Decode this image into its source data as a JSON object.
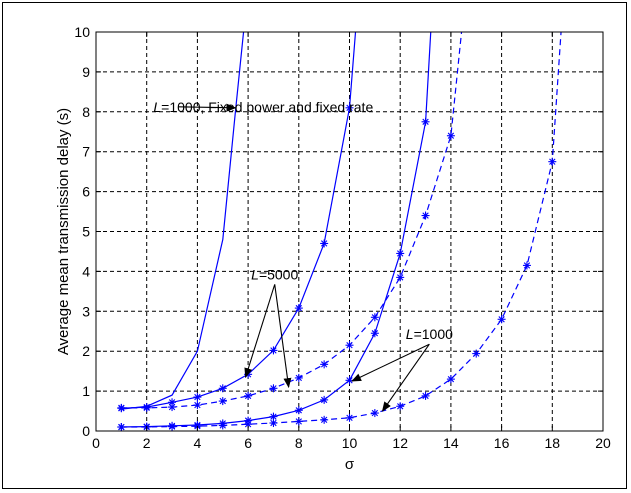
{
  "chart_data": {
    "type": "line",
    "title": "",
    "xlabel": "σ",
    "ylabel": "Average mean transmission delay (s)",
    "xlim": [
      0,
      20
    ],
    "ylim": [
      0,
      10
    ],
    "xticks": [
      0,
      2,
      4,
      6,
      8,
      10,
      12,
      14,
      16,
      18,
      20
    ],
    "yticks": [
      0,
      1,
      2,
      3,
      4,
      5,
      6,
      7,
      8,
      9,
      10
    ],
    "grid": true,
    "line_color": "#0000ff",
    "series": [
      {
        "style": "solid",
        "marker": "none",
        "points": [
          [
            1,
            0.55
          ],
          [
            2,
            0.62
          ],
          [
            3,
            0.9
          ],
          [
            4,
            2.0
          ],
          [
            5,
            4.8
          ],
          [
            5.5,
            8
          ],
          [
            5.9,
            10.5
          ]
        ]
      },
      {
        "style": "solid",
        "marker": "star",
        "points": [
          [
            1,
            0.57
          ],
          [
            2,
            0.6
          ],
          [
            3,
            0.72
          ],
          [
            4,
            0.85
          ],
          [
            5,
            1.07
          ],
          [
            6,
            1.42
          ],
          [
            7,
            2.02
          ],
          [
            8,
            3.08
          ],
          [
            9,
            4.7
          ],
          [
            10,
            8.1
          ],
          [
            10.3,
            10.5
          ]
        ]
      },
      {
        "style": "dashed",
        "marker": "star",
        "points": [
          [
            1,
            0.58
          ],
          [
            2,
            0.58
          ],
          [
            3,
            0.6
          ],
          [
            4,
            0.65
          ],
          [
            5,
            0.75
          ],
          [
            6,
            0.88
          ],
          [
            7,
            1.07
          ],
          [
            8,
            1.33
          ],
          [
            9,
            1.67
          ],
          [
            10,
            2.15
          ],
          [
            11,
            2.85
          ],
          [
            12,
            3.85
          ],
          [
            13,
            5.4
          ],
          [
            14,
            7.4
          ],
          [
            14.5,
            10.5
          ]
        ]
      },
      {
        "style": "solid",
        "marker": "star",
        "points": [
          [
            1,
            0.1
          ],
          [
            2,
            0.11
          ],
          [
            3,
            0.13
          ],
          [
            4,
            0.15
          ],
          [
            5,
            0.19
          ],
          [
            6,
            0.26
          ],
          [
            7,
            0.36
          ],
          [
            8,
            0.52
          ],
          [
            9,
            0.78
          ],
          [
            10,
            1.27
          ],
          [
            11,
            2.45
          ],
          [
            12,
            4.45
          ],
          [
            13,
            7.75
          ],
          [
            13.25,
            10.5
          ]
        ]
      },
      {
        "style": "dashed",
        "marker": "star",
        "points": [
          [
            1,
            0.1
          ],
          [
            2,
            0.1
          ],
          [
            3,
            0.11
          ],
          [
            4,
            0.12
          ],
          [
            5,
            0.14
          ],
          [
            6,
            0.17
          ],
          [
            7,
            0.2
          ],
          [
            8,
            0.24
          ],
          [
            9,
            0.28
          ],
          [
            10,
            0.33
          ],
          [
            11,
            0.45
          ],
          [
            12,
            0.62
          ],
          [
            13,
            0.88
          ],
          [
            14,
            1.3
          ],
          [
            15,
            1.94
          ],
          [
            16,
            2.8
          ],
          [
            17,
            4.15
          ],
          [
            18,
            6.75
          ],
          [
            18.4,
            10.5
          ]
        ]
      }
    ],
    "annotations": [
      {
        "prefix": "L",
        "text": "=1000, Fixed power and fixed rate",
        "anchor": [
          6.6,
          8.0
        ],
        "arrows": [
          [
            5.5,
            8.1
          ]
        ]
      },
      {
        "prefix": "L",
        "text": "=5000",
        "anchor": [
          7.05,
          3.8
        ],
        "arrows": [
          [
            5.9,
            1.35
          ],
          [
            7.6,
            1.1
          ]
        ]
      },
      {
        "prefix": "L",
        "text": "=1000",
        "anchor": [
          13.15,
          2.3
        ],
        "arrows": [
          [
            10.1,
            1.25
          ],
          [
            11.3,
            0.5
          ]
        ]
      }
    ]
  }
}
